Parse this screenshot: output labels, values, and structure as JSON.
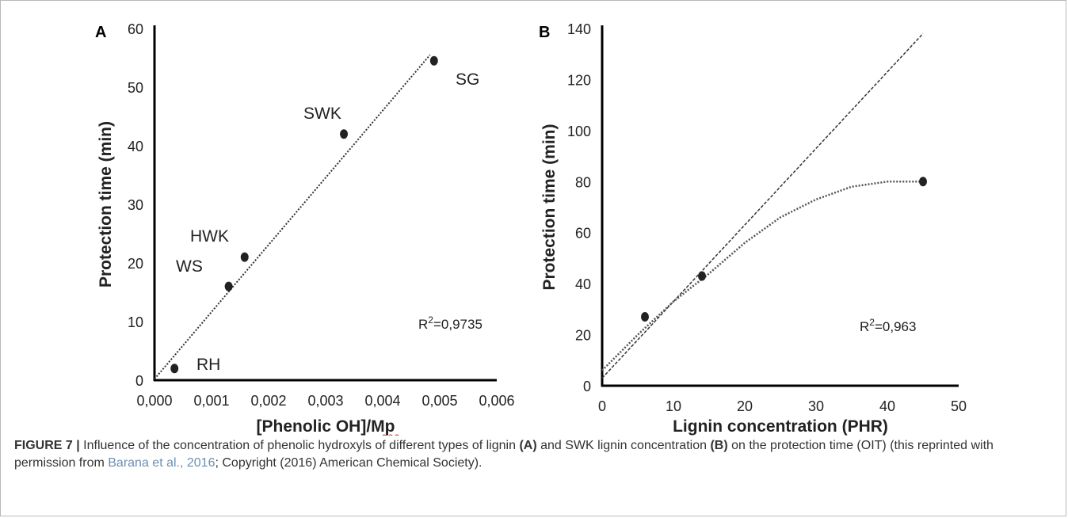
{
  "chart_data": [
    {
      "type": "scatter",
      "panel_label": "A",
      "xlabel": "[Phenolic OH]/Mp",
      "ylabel": "Protection time (min)",
      "xlim": [
        0,
        0.006
      ],
      "ylim": [
        0,
        60
      ],
      "x_ticks": [
        "0,000",
        "0,001",
        "0,002",
        "0,003",
        "0,004",
        "0,005",
        "0,006"
      ],
      "y_ticks": [
        "0",
        "10",
        "20",
        "30",
        "40",
        "50",
        "60"
      ],
      "points": [
        {
          "label": "RH",
          "x": 0.00035,
          "y": 2
        },
        {
          "label": "WS",
          "x": 0.0013,
          "y": 16
        },
        {
          "label": "HWK",
          "x": 0.00158,
          "y": 21
        },
        {
          "label": "SWK",
          "x": 0.00332,
          "y": 42
        },
        {
          "label": "SG",
          "x": 0.0049,
          "y": 54.5
        }
      ],
      "trendline": {
        "style": "dotted",
        "x": [
          0,
          0.00483
        ],
        "y": [
          0.2,
          55.5
        ]
      },
      "annotation": {
        "text_prefix": "R",
        "superscript": "2",
        "text_value": "=0,9735"
      },
      "grid": false
    },
    {
      "type": "scatter",
      "panel_label": "B",
      "xlabel": "Lignin concentration (PHR)",
      "ylabel": "Protection time (min)",
      "xlim": [
        0,
        50
      ],
      "ylim": [
        0,
        140
      ],
      "x_ticks": [
        "0",
        "10",
        "20",
        "30",
        "40",
        "50"
      ],
      "y_ticks": [
        "0",
        "20",
        "40",
        "60",
        "80",
        "100",
        "120",
        "140"
      ],
      "points": [
        {
          "x": 6,
          "y": 27
        },
        {
          "x": 14,
          "y": 43
        },
        {
          "x": 45,
          "y": 80
        }
      ],
      "linear_fit": {
        "style": "dashed",
        "x": [
          0,
          45
        ],
        "y": [
          3,
          138
        ]
      },
      "curve_fit": {
        "style": "dotted",
        "x": [
          0,
          5,
          10,
          15,
          20,
          25,
          30,
          35,
          40,
          45
        ],
        "y": [
          6,
          20,
          33,
          44,
          56,
          66,
          73,
          78,
          80,
          80
        ]
      },
      "annotation": {
        "text_prefix": "R",
        "superscript": "2",
        "text_value": "=0,963"
      },
      "grid": false
    }
  ],
  "caption": {
    "figure_label": "FIGURE 7 |",
    "text_1": " Influence of the concentration of phenolic hydroxyls of different types of lignin ",
    "bold_1": "(A)",
    "text_2": " and SWK lignin concentration ",
    "bold_2": "(B)",
    "text_3": " on the protection time (OIT) (this reprinted with permission from ",
    "citation": "Barana et al., 2016",
    "text_4": "; Copyright (2016) American Chemical Society)."
  }
}
